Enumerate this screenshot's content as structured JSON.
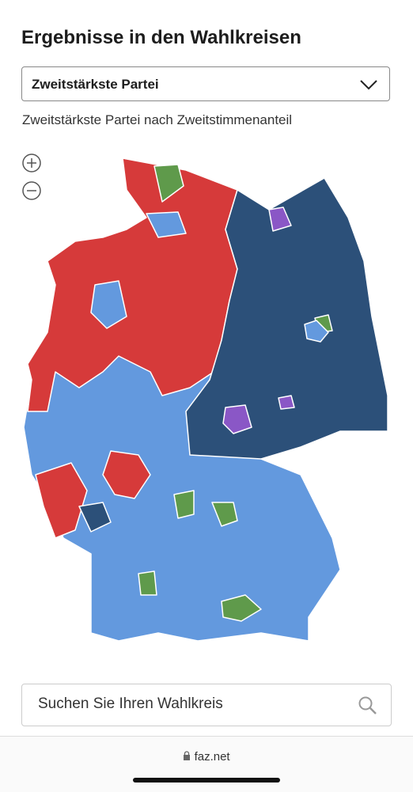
{
  "header": {
    "title": "Ergebnisse in den Wahlkreisen"
  },
  "dropdown": {
    "selected": "Zweitstärkste Partei"
  },
  "map": {
    "subtitle": "Zweitstärkste Partei nach Zweitstimmenanteil"
  },
  "search": {
    "placeholder": "Suchen Sie Ihren Wahlkreis"
  },
  "browser": {
    "url": "faz.net"
  }
}
